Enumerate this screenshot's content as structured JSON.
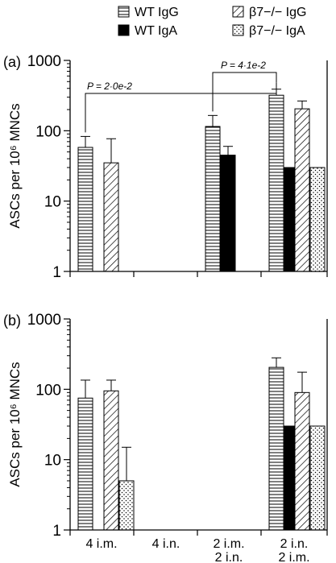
{
  "legend": [
    {
      "label": "WT IgG",
      "pattern": "hstripe"
    },
    {
      "label": "β7−/− IgG",
      "pattern": "diag"
    },
    {
      "label": "WT IgA",
      "pattern": "solid"
    },
    {
      "label": "β7−/− IgA",
      "pattern": "dots"
    }
  ],
  "chart_data": [
    {
      "type": "bar",
      "panel": "(a)",
      "ylabel": "ASCs per 10⁶ MNCs",
      "yscale": "log",
      "ylim": [
        1,
        1000
      ],
      "yticks": [
        "1",
        "10",
        "100",
        "1000"
      ],
      "categories": [
        "4 i.m.",
        "4 i.n.",
        "2 i.m. 2 i.n.",
        "2 i.n. 2 i.m."
      ],
      "series": [
        {
          "name": "WT IgG",
          "values": [
            58,
            null,
            115,
            320
          ],
          "errors": [
            25,
            null,
            50,
            70
          ]
        },
        {
          "name": "WT IgA",
          "values": [
            null,
            null,
            45,
            30
          ],
          "errors": [
            null,
            null,
            15,
            null
          ]
        },
        {
          "name": "β7−/− IgG",
          "values": [
            35,
            null,
            null,
            205
          ],
          "errors": [
            42,
            null,
            null,
            60
          ]
        },
        {
          "name": "β7−/− IgA",
          "values": [
            null,
            null,
            null,
            30
          ],
          "errors": [
            null,
            null,
            null,
            null
          ]
        }
      ],
      "annotations": [
        {
          "text": "P = 2·0e-2",
          "from_group": 0,
          "to_group": 3
        },
        {
          "text": "P = 4·1e-2",
          "from_group": 2,
          "to_group": 3
        }
      ]
    },
    {
      "type": "bar",
      "panel": "(b)",
      "ylabel": "ASCs per 10⁶ MNCs",
      "yscale": "log",
      "ylim": [
        1,
        1000
      ],
      "yticks": [
        "1",
        "10",
        "100",
        "1000"
      ],
      "categories": [
        "4 i.m.",
        "4 i.n.",
        "2 i.m. 2 i.n.",
        "2 i.n. 2 i.m."
      ],
      "category_lines": [
        [
          "4 i.m."
        ],
        [
          "4 i.n."
        ],
        [
          "2 i.m.",
          "2 i.n."
        ],
        [
          "2 i.n.",
          "2 i.m."
        ]
      ],
      "series": [
        {
          "name": "WT IgG",
          "values": [
            75,
            null,
            null,
            205
          ],
          "errors": [
            60,
            null,
            null,
            75
          ]
        },
        {
          "name": "WT IgA",
          "values": [
            null,
            null,
            null,
            30
          ],
          "errors": [
            null,
            null,
            null,
            null
          ]
        },
        {
          "name": "β7−/− IgG",
          "values": [
            95,
            null,
            null,
            90
          ],
          "errors": [
            40,
            null,
            null,
            85
          ]
        },
        {
          "name": "β7−/− IgA",
          "values": [
            5,
            null,
            null,
            30
          ],
          "errors": [
            10,
            null,
            null,
            null
          ]
        }
      ]
    }
  ]
}
